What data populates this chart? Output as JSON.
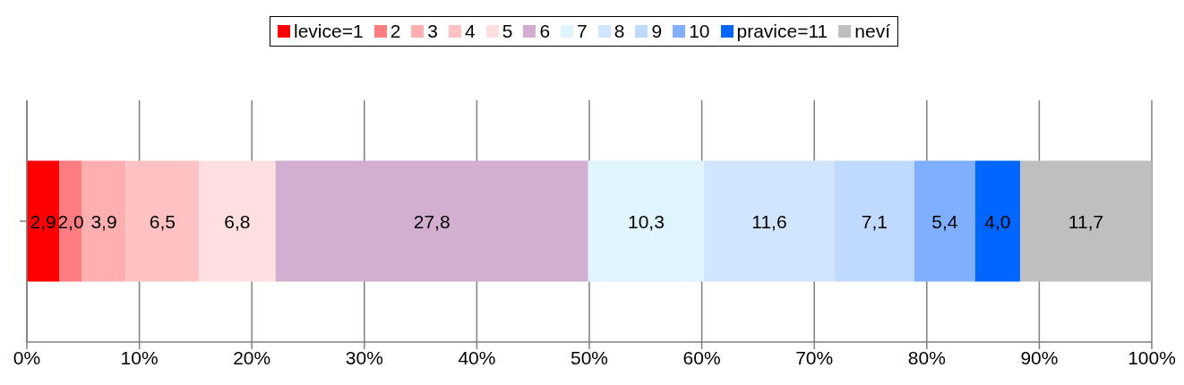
{
  "chart_data": {
    "type": "bar",
    "orientation": "horizontal",
    "stacked": true,
    "categories": [
      null
    ],
    "series": [
      {
        "name": "levice=1",
        "color": "#ff0000",
        "values": [
          2.9
        ],
        "value_labels": [
          "2,9"
        ]
      },
      {
        "name": "2",
        "color": "#ff7c80",
        "values": [
          2.0
        ],
        "value_labels": [
          "2,0"
        ]
      },
      {
        "name": "3",
        "color": "#ffafaf",
        "values": [
          3.9
        ],
        "value_labels": [
          "3,9"
        ]
      },
      {
        "name": "4",
        "color": "#ffc1c1",
        "values": [
          6.5
        ],
        "value_labels": [
          "6,5"
        ]
      },
      {
        "name": "5",
        "color": "#ffdfe0",
        "values": [
          6.8
        ],
        "value_labels": [
          "6,8"
        ]
      },
      {
        "name": "6",
        "color": "#d2afd0",
        "values": [
          27.8
        ],
        "value_labels": [
          "27,8"
        ]
      },
      {
        "name": "7",
        "color": "#e0f4fd",
        "values": [
          10.3
        ],
        "value_labels": [
          "10,3"
        ]
      },
      {
        "name": "8",
        "color": "#d2e5fe",
        "values": [
          11.6
        ],
        "value_labels": [
          "11,6"
        ]
      },
      {
        "name": "9",
        "color": "#c0d9fe",
        "values": [
          7.1
        ],
        "value_labels": [
          "7,1"
        ]
      },
      {
        "name": "10",
        "color": "#7faffe",
        "values": [
          5.4
        ],
        "value_labels": [
          "5,4"
        ]
      },
      {
        "name": "pravice=11",
        "color": "#0066ff",
        "values": [
          4.0
        ],
        "value_labels": [
          "4,0"
        ]
      },
      {
        "name": "neví",
        "color": "#bfbfbf",
        "values": [
          11.7
        ],
        "value_labels": [
          "11,7"
        ]
      }
    ],
    "xlim": [
      0,
      100
    ],
    "xticks": [
      {
        "value": 0,
        "label": "0%"
      },
      {
        "value": 10,
        "label": "10%"
      },
      {
        "value": 20,
        "label": "20%"
      },
      {
        "value": 30,
        "label": "30%"
      },
      {
        "value": 40,
        "label": "40%"
      },
      {
        "value": 50,
        "label": "50%"
      },
      {
        "value": 60,
        "label": "60%"
      },
      {
        "value": 70,
        "label": "70%"
      },
      {
        "value": 80,
        "label": "80%"
      },
      {
        "value": 90,
        "label": "90%"
      },
      {
        "value": 100,
        "label": "100%"
      }
    ],
    "grid": "x",
    "legend": "top"
  }
}
